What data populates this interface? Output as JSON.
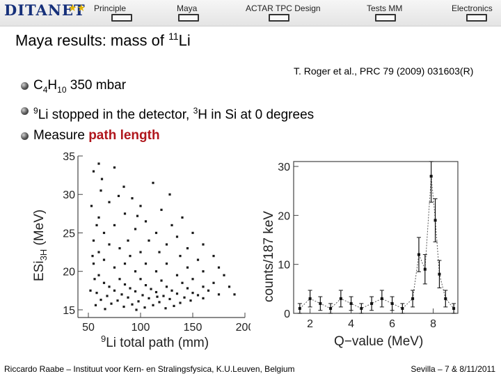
{
  "header": {
    "logo_text": "DITANET",
    "logo_stars": "★★",
    "nav": [
      {
        "label": "Principle"
      },
      {
        "label": "Maya"
      },
      {
        "label": "ACTAR TPC Design"
      },
      {
        "label": "Tests MM"
      },
      {
        "label": "Electronics"
      }
    ]
  },
  "slide": {
    "title_pre": "Maya results: mass of ",
    "title_sup": "11",
    "title_post": "Li",
    "reference_authors": "T. Roger et al.,",
    "reference_journal": " PRC 79 (2009) 031603(R)",
    "bullets": {
      "b1_c": "C",
      "b1_sub1": "4",
      "b1_h": "H",
      "b1_sub2": "10",
      "b1_rest": " 350 mbar",
      "b2_sup1": "9",
      "b2_mid": "Li stopped in the detector, ",
      "b2_sup2": "3",
      "b2_rest": "H in Si at 0 degrees",
      "b3_pre": "Measure ",
      "b3_accent": "path length"
    }
  },
  "chart_data": [
    {
      "type": "scatter",
      "xlabel_sup": "9",
      "xlabel": "Li total path (mm)",
      "ylabel": "ESi",
      "ylabel_sub": "3H",
      "ylabel_unit": " (MeV)",
      "xlim": [
        40,
        200
      ],
      "ylim": [
        14,
        35
      ],
      "xticks": [
        50,
        100,
        150,
        200
      ],
      "yticks": [
        15,
        20,
        25,
        30,
        35
      ],
      "points": [
        [
          55,
          33
        ],
        [
          60,
          34
        ],
        [
          75,
          33.5
        ],
        [
          84,
          31
        ],
        [
          112,
          31.5
        ],
        [
          128,
          30
        ],
        [
          62,
          30.5
        ],
        [
          92,
          29.5
        ],
        [
          70,
          29
        ],
        [
          100,
          28.5
        ],
        [
          120,
          28
        ],
        [
          140,
          27
        ],
        [
          85,
          27.5
        ],
        [
          60,
          27
        ],
        [
          105,
          26.5
        ],
        [
          130,
          26
        ],
        [
          150,
          25
        ],
        [
          75,
          26
        ],
        [
          95,
          25.5
        ],
        [
          115,
          25
        ],
        [
          65,
          25
        ],
        [
          135,
          24.5
        ],
        [
          160,
          23.5
        ],
        [
          88,
          24
        ],
        [
          108,
          24
        ],
        [
          125,
          23.5
        ],
        [
          55,
          24
        ],
        [
          70,
          23.5
        ],
        [
          145,
          23
        ],
        [
          170,
          22
        ],
        [
          80,
          23
        ],
        [
          100,
          22.5
        ],
        [
          118,
          22.5
        ],
        [
          138,
          22
        ],
        [
          60,
          22.5
        ],
        [
          155,
          21.5
        ],
        [
          90,
          22
        ],
        [
          175,
          20.5
        ],
        [
          65,
          21.5
        ],
        [
          85,
          21
        ],
        [
          105,
          21
        ],
        [
          125,
          21
        ],
        [
          145,
          20.5
        ],
        [
          160,
          20
        ],
        [
          180,
          19.5
        ],
        [
          55,
          21
        ],
        [
          75,
          20.5
        ],
        [
          95,
          20
        ],
        [
          115,
          20
        ],
        [
          135,
          19.5
        ],
        [
          150,
          19
        ],
        [
          170,
          18.5
        ],
        [
          185,
          18
        ],
        [
          60,
          19.5
        ],
        [
          80,
          19
        ],
        [
          100,
          19
        ],
        [
          120,
          18.8
        ],
        [
          140,
          18.5
        ],
        [
          160,
          18
        ],
        [
          190,
          17
        ],
        [
          65,
          18.5
        ],
        [
          85,
          18.3
        ],
        [
          105,
          18.2
        ],
        [
          125,
          18
        ],
        [
          145,
          17.8
        ],
        [
          165,
          17.5
        ],
        [
          70,
          18
        ],
        [
          90,
          17.8
        ],
        [
          110,
          17.7
        ],
        [
          130,
          17.5
        ],
        [
          150,
          17.2
        ],
        [
          175,
          17
        ],
        [
          75,
          17.5
        ],
        [
          95,
          17.4
        ],
        [
          115,
          17.3
        ],
        [
          135,
          17.1
        ],
        [
          155,
          16.9
        ],
        [
          58,
          17.2
        ],
        [
          82,
          17
        ],
        [
          102,
          16.9
        ],
        [
          122,
          16.8
        ],
        [
          142,
          16.6
        ],
        [
          160,
          16.5
        ],
        [
          68,
          16.8
        ],
        [
          88,
          16.6
        ],
        [
          108,
          16.5
        ],
        [
          128,
          16.4
        ],
        [
          148,
          16.2
        ],
        [
          62,
          16.3
        ],
        [
          78,
          16.2
        ],
        [
          98,
          16.1
        ],
        [
          118,
          16
        ],
        [
          138,
          15.9
        ],
        [
          72,
          15.8
        ],
        [
          92,
          15.7
        ],
        [
          112,
          15.6
        ],
        [
          132,
          15.5
        ],
        [
          57,
          15.6
        ],
        [
          84,
          15.4
        ],
        [
          104,
          15.3
        ],
        [
          124,
          15.2
        ],
        [
          66,
          15.1
        ],
        [
          96,
          15
        ],
        [
          116,
          16.7
        ],
        [
          53,
          28.5
        ],
        [
          58,
          26
        ],
        [
          54,
          22
        ],
        [
          56,
          19
        ],
        [
          52,
          17.5
        ],
        [
          63,
          32
        ],
        [
          79,
          29.8
        ],
        [
          97,
          27.2
        ]
      ]
    },
    {
      "type": "line",
      "xlabel": "Q−value (MeV)",
      "ylabel": "counts/187 keV",
      "xlim": [
        1.2,
        9.2
      ],
      "ylim": [
        0,
        31
      ],
      "xticks": [
        2,
        4,
        6,
        8
      ],
      "yticks": [
        0,
        10,
        20,
        30
      ],
      "x": [
        1.5,
        2.0,
        2.5,
        3.0,
        3.5,
        4.0,
        4.5,
        5.0,
        5.5,
        6.0,
        6.5,
        7.0,
        7.3,
        7.6,
        7.9,
        8.1,
        8.3,
        8.6,
        9.0
      ],
      "values": [
        1,
        3,
        2,
        1,
        3,
        2,
        1,
        2,
        3,
        2,
        1,
        3,
        12,
        9,
        28,
        19,
        8,
        3,
        1
      ],
      "errors": [
        1,
        1.7,
        1.4,
        1,
        1.7,
        1.4,
        1,
        1.4,
        1.7,
        1.4,
        1,
        1.7,
        3.5,
        3,
        5.3,
        4.4,
        2.8,
        1.7,
        1
      ]
    }
  ]
}
